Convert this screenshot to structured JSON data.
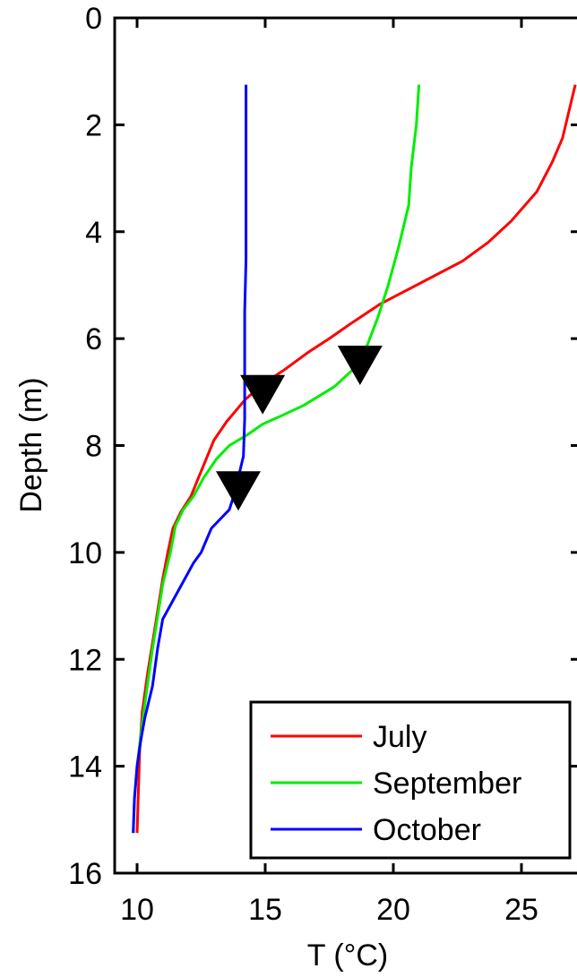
{
  "chart_data": {
    "type": "line",
    "title": "",
    "xlabel": "T (°C)",
    "ylabel": "Depth (m)",
    "xlim": [
      9,
      28
    ],
    "ylim": [
      0,
      16
    ],
    "y_inverted": true,
    "x_ticks": [
      10,
      15,
      20,
      25
    ],
    "y_ticks": [
      0,
      2,
      4,
      6,
      8,
      10,
      12,
      14,
      16
    ],
    "grid": false,
    "legend_position": "bottom-right",
    "series": [
      {
        "name": "July",
        "color": "#ff0000",
        "points": [
          [
            27.1,
            1.25
          ],
          [
            26.6,
            2.25
          ],
          [
            26.2,
            2.7
          ],
          [
            25.6,
            3.25
          ],
          [
            24.6,
            3.8
          ],
          [
            23.7,
            4.2
          ],
          [
            22.7,
            4.55
          ],
          [
            21.5,
            4.85
          ],
          [
            20.5,
            5.1
          ],
          [
            19.5,
            5.35
          ],
          [
            18.4,
            5.7
          ],
          [
            17.5,
            6.0
          ],
          [
            16.7,
            6.25
          ],
          [
            15.7,
            6.6
          ],
          [
            14.9,
            6.85
          ],
          [
            14.2,
            7.15
          ],
          [
            13.5,
            7.55
          ],
          [
            13.0,
            7.9
          ],
          [
            12.7,
            8.25
          ],
          [
            12.4,
            8.6
          ],
          [
            12.1,
            8.95
          ],
          [
            11.7,
            9.25
          ],
          [
            11.4,
            9.55
          ],
          [
            11.2,
            10.0
          ],
          [
            11.0,
            10.5
          ],
          [
            10.8,
            11.1
          ],
          [
            10.6,
            11.7
          ],
          [
            10.4,
            12.3
          ],
          [
            10.2,
            13.0
          ],
          [
            10.1,
            13.7
          ],
          [
            10.05,
            14.5
          ],
          [
            10.0,
            15.25
          ]
        ]
      },
      {
        "name": "September",
        "color": "#00ee00",
        "points": [
          [
            21.0,
            1.25
          ],
          [
            20.9,
            2.0
          ],
          [
            20.7,
            2.8
          ],
          [
            20.6,
            3.5
          ],
          [
            20.2,
            4.3
          ],
          [
            19.8,
            5.0
          ],
          [
            19.4,
            5.6
          ],
          [
            19.0,
            6.1
          ],
          [
            18.6,
            6.5
          ],
          [
            17.7,
            6.9
          ],
          [
            16.5,
            7.25
          ],
          [
            15.6,
            7.45
          ],
          [
            14.9,
            7.6
          ],
          [
            14.3,
            7.8
          ],
          [
            13.6,
            8.0
          ],
          [
            13.1,
            8.25
          ],
          [
            12.6,
            8.6
          ],
          [
            12.2,
            8.95
          ],
          [
            11.8,
            9.2
          ],
          [
            11.5,
            9.5
          ],
          [
            11.3,
            10.0
          ],
          [
            11.0,
            10.6
          ],
          [
            10.8,
            11.2
          ],
          [
            10.6,
            11.8
          ],
          [
            10.4,
            12.5
          ],
          [
            10.2,
            13.2
          ],
          [
            10.0,
            14.0
          ],
          [
            9.9,
            14.6
          ],
          [
            9.85,
            15.25
          ]
        ]
      },
      {
        "name": "October",
        "color": "#0000ff",
        "points": [
          [
            14.25,
            1.25
          ],
          [
            14.25,
            2.5
          ],
          [
            14.25,
            3.5
          ],
          [
            14.25,
            4.5
          ],
          [
            14.2,
            5.5
          ],
          [
            14.2,
            6.5
          ],
          [
            14.2,
            7.5
          ],
          [
            14.15,
            8.2
          ],
          [
            14.0,
            8.5
          ],
          [
            13.8,
            8.9
          ],
          [
            13.6,
            9.2
          ],
          [
            12.9,
            9.55
          ],
          [
            12.5,
            10.0
          ],
          [
            12.2,
            10.2
          ],
          [
            11.4,
            10.9
          ],
          [
            11.0,
            11.25
          ],
          [
            10.8,
            11.8
          ],
          [
            10.6,
            12.5
          ],
          [
            10.3,
            13.1
          ],
          [
            10.15,
            13.5
          ],
          [
            10.0,
            14.0
          ],
          [
            9.9,
            14.6
          ],
          [
            9.85,
            15.25
          ]
        ]
      }
    ],
    "markers": [
      {
        "series": "July",
        "x": 14.9,
        "y": 7.05,
        "shape": "triangle-down"
      },
      {
        "series": "September",
        "x": 18.7,
        "y": 6.5,
        "shape": "triangle-down"
      },
      {
        "series": "October",
        "x": 13.95,
        "y": 8.85,
        "shape": "triangle-down"
      }
    ]
  }
}
